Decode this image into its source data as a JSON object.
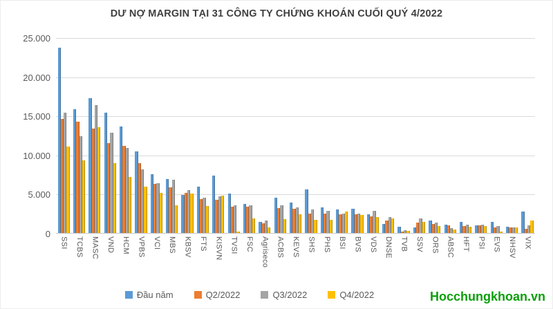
{
  "header": {
    "title": "DƯ NỢ MARGIN TẠI 31 CÔNG TY CHỨNG KHOÁN CUỐI QUÝ 4/2022"
  },
  "watermark": "Hocchungkhoan.vn",
  "colors": {
    "series_blue": "#5B9BD5",
    "series_orange": "#ED7D31",
    "series_gray": "#A5A5A5",
    "series_yellow": "#FFC000",
    "gridline": "#D9D9D9",
    "text": "#595959",
    "watermark_green": "#0B9F0B"
  },
  "chart_data": {
    "type": "bar",
    "title": "DƯ NỢ MARGIN TẠI 31 CÔNG TY CHỨNG KHOÁN CUỐI QUÝ 4/2022",
    "xlabel": "",
    "ylabel": "",
    "ylim": [
      0,
      25000
    ],
    "grid": true,
    "legend_position": "bottom",
    "y_ticks": [
      {
        "label": "25.000",
        "value": 25000
      },
      {
        "label": "20.000",
        "value": 20000
      },
      {
        "label": "15.000",
        "value": 15000
      },
      {
        "label": "10.000",
        "value": 10000
      },
      {
        "label": "5.000",
        "value": 5000
      },
      {
        "label": "0",
        "value": 0
      }
    ],
    "categories": [
      "SSI",
      "TCBS",
      "MASC",
      "VND",
      "HCM",
      "VPBS",
      "VCI",
      "MBS",
      "KBSV",
      "FTS",
      "KISVN",
      "TVSI",
      "FSC",
      "Agriseco",
      "ACBS",
      "KEVS",
      "SHS",
      "PHS",
      "BSI",
      "BVS",
      "VDS",
      "DNSE",
      "TVB",
      "SSV",
      "ORS",
      "ABSC",
      "HFT",
      "PSI",
      "EVS",
      "NHSV",
      "VIX"
    ],
    "series": [
      {
        "name": "Đầu năm",
        "color": "#5B9BD5",
        "values": [
          23700,
          15800,
          17200,
          15400,
          13600,
          10400,
          7500,
          6900,
          4900,
          5950,
          7350,
          5000,
          3700,
          1400,
          4500,
          3850,
          5600,
          3250,
          3000,
          3100,
          2400,
          1150,
          760,
          750,
          1550,
          1050,
          1400,
          1000,
          1400,
          780,
          2700
        ]
      },
      {
        "name": "Q2/2022",
        "color": "#ED7D31",
        "values": [
          14600,
          14200,
          13300,
          11500,
          11100,
          8900,
          6300,
          5800,
          5100,
          4350,
          4250,
          3400,
          3400,
          1200,
          3150,
          3050,
          2500,
          2450,
          2400,
          2350,
          2150,
          1600,
          150,
          1350,
          1150,
          950,
          850,
          1000,
          700,
          680,
          550
        ]
      },
      {
        "name": "Q3/2022",
        "color": "#A5A5A5",
        "values": [
          15400,
          12400,
          16300,
          12800,
          10900,
          8100,
          6400,
          6800,
          5500,
          4550,
          4700,
          3550,
          3550,
          1600,
          3550,
          3250,
          3000,
          2800,
          2500,
          2450,
          2850,
          2050,
          380,
          1850,
          1300,
          600,
          1100,
          1100,
          850,
          700,
          1000
        ]
      },
      {
        "name": "Q4/2022",
        "color": "#FFC000",
        "values": [
          11000,
          9300,
          13500,
          8900,
          7200,
          5900,
          5100,
          3500,
          5050,
          3450,
          4800,
          200,
          1900,
          700,
          1750,
          2350,
          1650,
          1650,
          2700,
          2300,
          2050,
          1850,
          250,
          1450,
          850,
          450,
          780,
          850,
          200,
          700,
          1550
        ]
      }
    ]
  }
}
